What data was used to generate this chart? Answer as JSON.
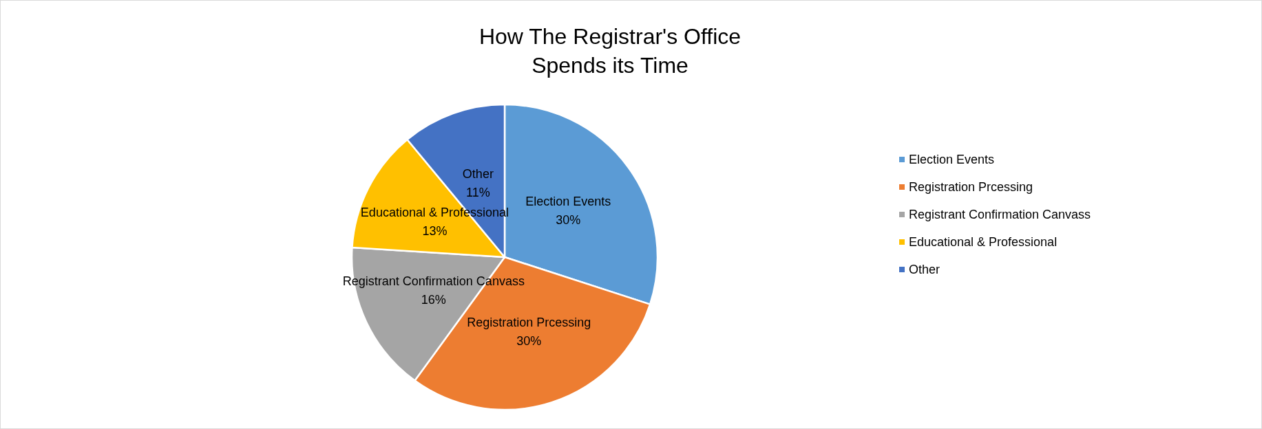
{
  "chart_data": {
    "type": "pie",
    "title": "How The Registrar's Office\nSpends its Time",
    "categories": [
      "Election Events",
      "Registration Prcessing",
      "Registrant Confirmation Canvass",
      "Educational & Professional",
      "Other"
    ],
    "values": [
      30,
      30,
      16,
      13,
      11
    ],
    "value_labels": [
      "30%",
      "30%",
      "16%",
      "13%",
      "11%"
    ],
    "colors": [
      "#5b9bd5",
      "#ed7d31",
      "#a5a5a5",
      "#ffc000",
      "#4472c4"
    ],
    "legend": "right"
  }
}
